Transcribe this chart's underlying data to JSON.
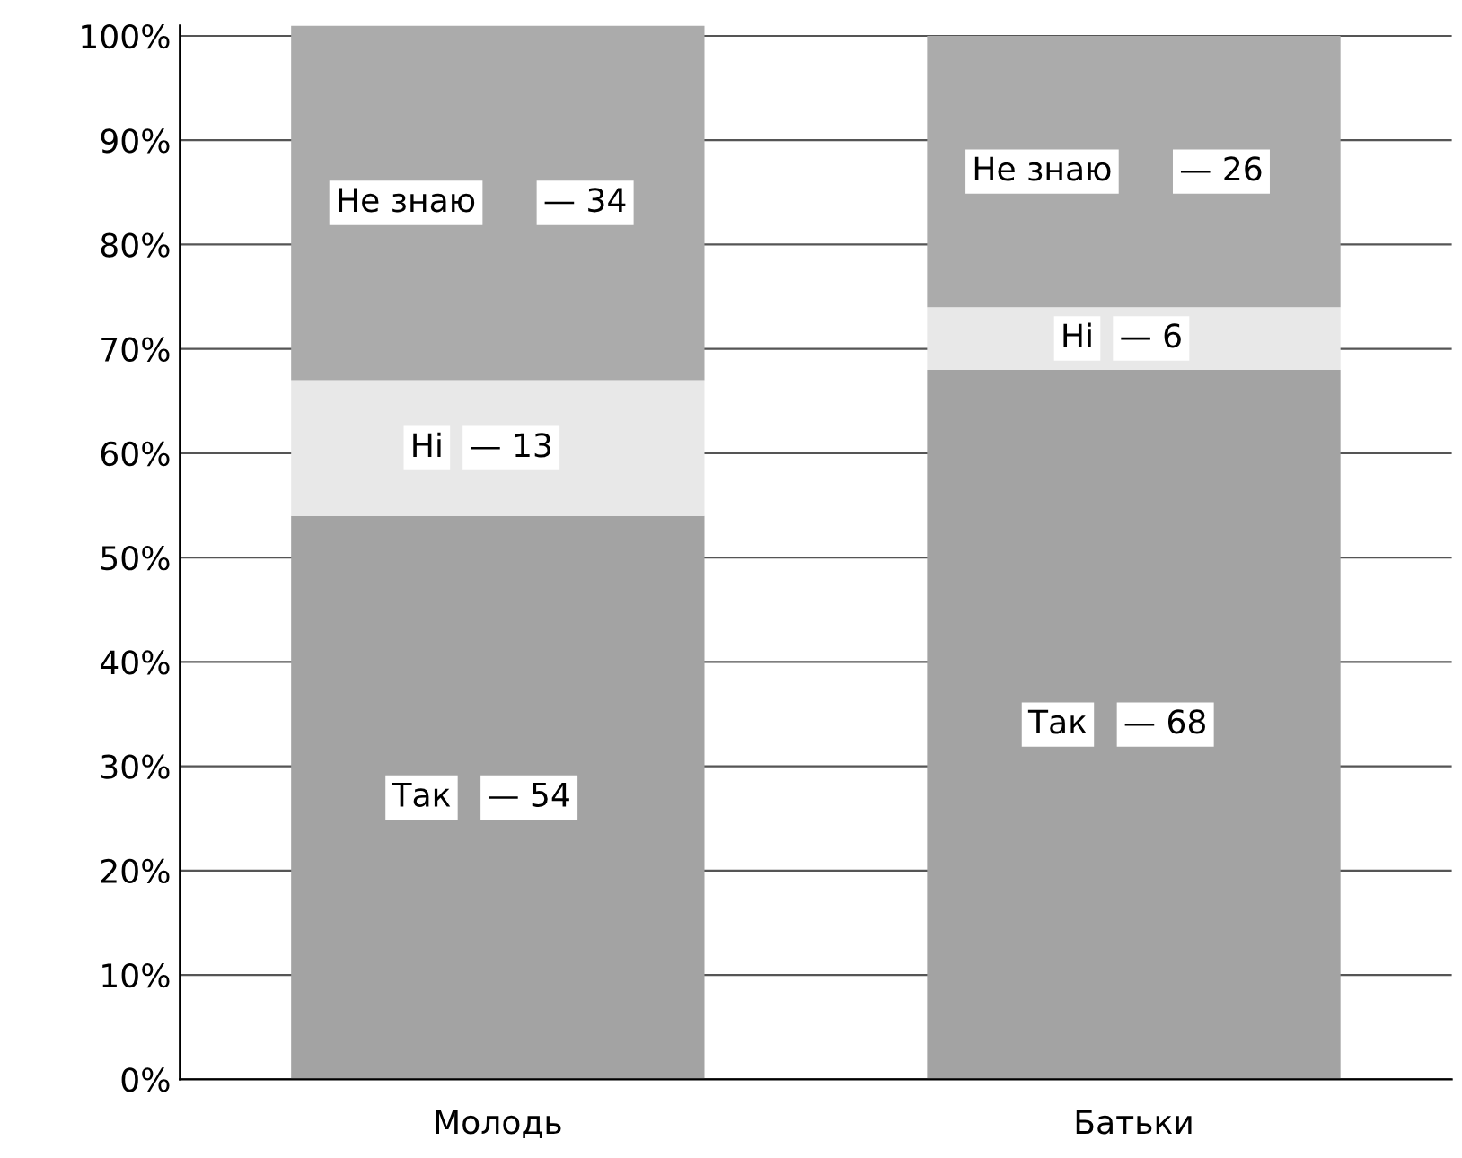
{
  "chart_data": {
    "type": "bar",
    "stacked": true,
    "categories": [
      "Молодь",
      "Батьки"
    ],
    "series": [
      {
        "name": "Так",
        "color": "#a3a3a3",
        "values": [
          54,
          68
        ],
        "value_labels": [
          "— 54",
          "— 68"
        ]
      },
      {
        "name": "Ні",
        "color": "#e8e8e8",
        "values": [
          13,
          6
        ],
        "value_labels": [
          "— 13",
          "— 6"
        ]
      },
      {
        "name": "Не знаю",
        "color": "#ababab",
        "values": [
          34,
          26
        ],
        "value_labels": [
          "— 34",
          "— 26"
        ]
      }
    ],
    "ylim": [
      0,
      101
    ],
    "yticks": [
      {
        "value": 0,
        "label": "0%"
      },
      {
        "value": 10,
        "label": "10%"
      },
      {
        "value": 20,
        "label": "20%"
      },
      {
        "value": 30,
        "label": "30%"
      },
      {
        "value": 40,
        "label": "40%"
      },
      {
        "value": 50,
        "label": "50%"
      },
      {
        "value": 60,
        "label": "60%"
      },
      {
        "value": 70,
        "label": "70%"
      },
      {
        "value": 80,
        "label": "80%"
      },
      {
        "value": 90,
        "label": "90%"
      },
      {
        "value": 100,
        "label": "100%"
      }
    ],
    "grid": "y",
    "legend": false
  }
}
